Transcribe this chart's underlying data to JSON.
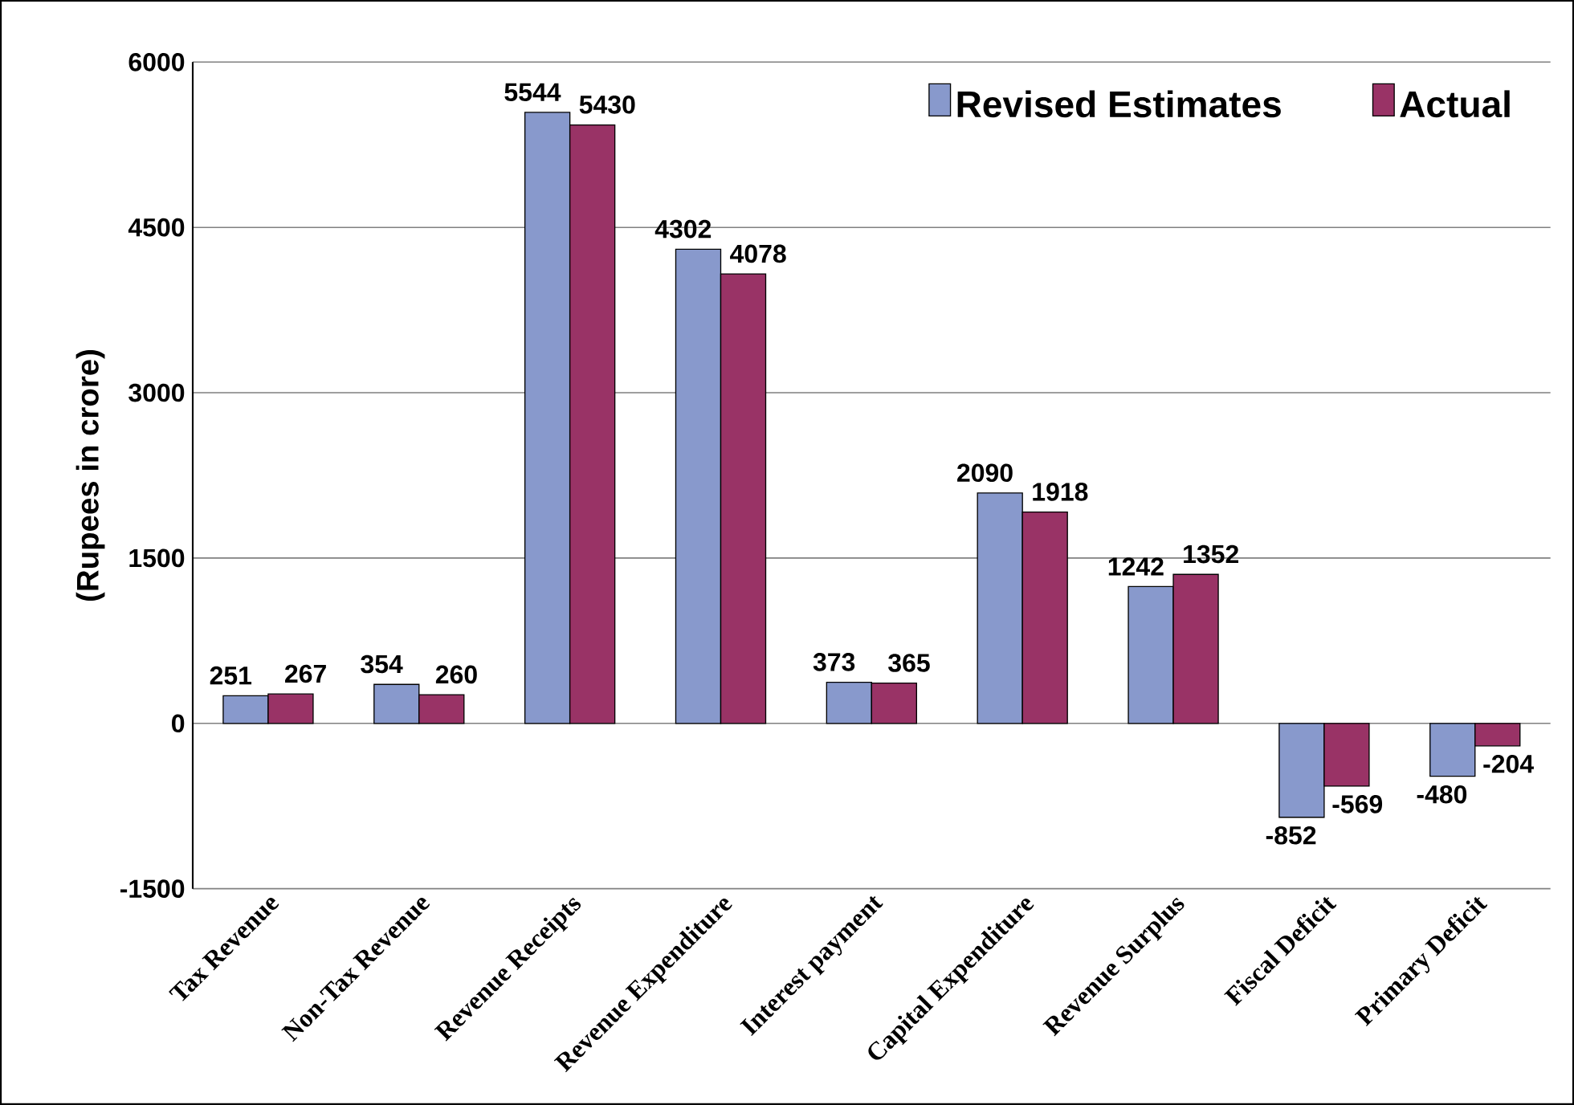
{
  "chart_data": {
    "type": "bar",
    "ylabel": "(Rupees in crore)",
    "categories": [
      "Tax Revenue",
      "Non-Tax Revenue",
      "Revenue Receipts",
      "Revenue Expenditure",
      "Interest payment",
      "Capital Expenditure",
      "Revenue Surplus",
      "Fiscal Deficit",
      "Primary Deficit"
    ],
    "series": [
      {
        "name": "Revised Estimates",
        "color": "#8899cc",
        "values": [
          251,
          354,
          5544,
          4302,
          373,
          2090,
          1242,
          -852,
          -480
        ]
      },
      {
        "name": "Actual",
        "color": "#993366",
        "values": [
          267,
          260,
          5430,
          4078,
          365,
          1918,
          1352,
          -569,
          -204
        ]
      }
    ],
    "ylim": [
      -1500,
      6000
    ],
    "yticks": [
      -1500,
      0,
      1500,
      3000,
      4500,
      6000
    ],
    "grid": "y",
    "legend": "top right",
    "data_labels": true
  }
}
